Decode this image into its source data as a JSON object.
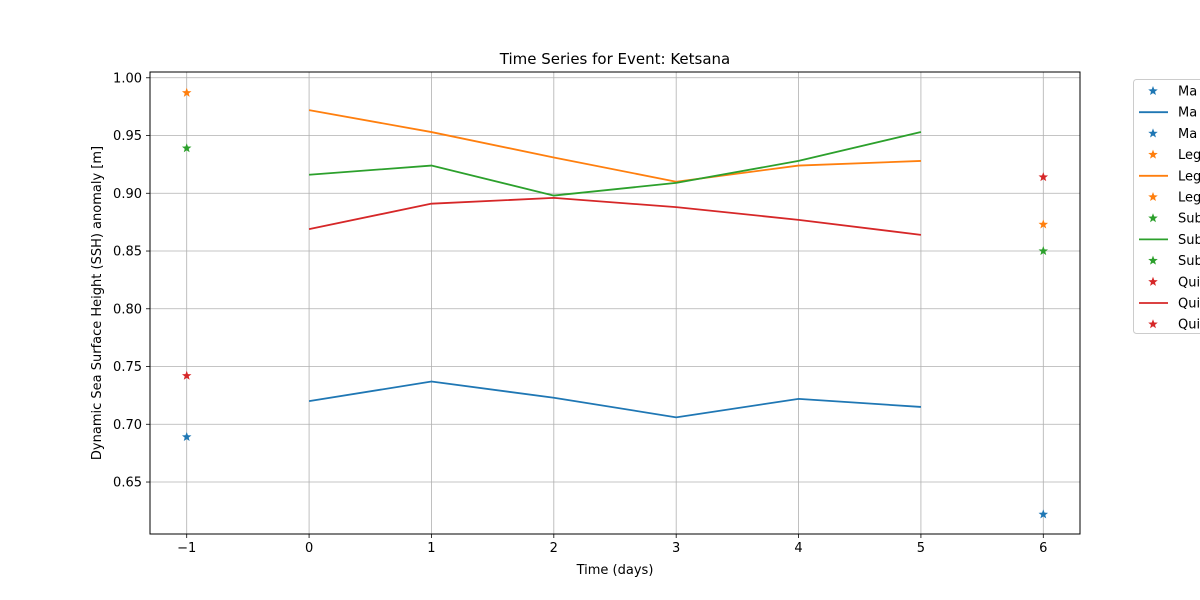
{
  "chart_data": {
    "type": "line",
    "title": "Time Series for Event: Ketsana",
    "xlabel": "Time (days)",
    "ylabel": "Dynamic Sea Surface Height (SSH) anomaly [m]",
    "xlim": [
      -1.3,
      6.3
    ],
    "ylim": [
      0.605,
      1.005
    ],
    "xticks": [
      -1,
      0,
      1,
      2,
      3,
      4,
      5,
      6
    ],
    "xtick_labels": [
      "−1",
      "0",
      "1",
      "2",
      "3",
      "4",
      "5",
      "6"
    ],
    "yticks": [
      0.65,
      0.7,
      0.75,
      0.8,
      0.85,
      0.9,
      0.95,
      1.0
    ],
    "ytick_labels": [
      "0.65",
      "0.70",
      "0.75",
      "0.80",
      "0.85",
      "0.90",
      "0.95",
      "1.00"
    ],
    "grid": true,
    "legend_position": "outside-right",
    "series": [
      {
        "color": "#1f77b4",
        "line_label": "Ma",
        "line_x": [
          0,
          1,
          2,
          3,
          4,
          5
        ],
        "line_y": [
          0.72,
          0.737,
          0.723,
          0.706,
          0.722,
          0.715
        ],
        "pre_label": "Ma",
        "pre_point": [
          -1,
          0.689
        ],
        "post_label": "Ma",
        "post_point": [
          6,
          0.622
        ]
      },
      {
        "color": "#ff7f0e",
        "line_label": "Leg",
        "line_x": [
          0,
          1,
          2,
          3,
          4,
          5
        ],
        "line_y": [
          0.972,
          0.953,
          0.931,
          0.91,
          0.924,
          0.928
        ],
        "pre_label": "Leg",
        "pre_point": [
          -1,
          0.987
        ],
        "post_label": "Leg",
        "post_point": [
          6,
          0.873
        ]
      },
      {
        "color": "#2ca02c",
        "line_label": "Sub",
        "line_x": [
          0,
          1,
          2,
          3,
          4,
          5
        ],
        "line_y": [
          0.916,
          0.924,
          0.898,
          0.909,
          0.928,
          0.953
        ],
        "pre_label": "Sub",
        "pre_point": [
          -1,
          0.939
        ],
        "post_label": "Sub",
        "post_point": [
          6,
          0.85
        ]
      },
      {
        "color": "#d62728",
        "line_label": "Qui",
        "line_x": [
          0,
          1,
          2,
          3,
          4,
          5
        ],
        "line_y": [
          0.869,
          0.891,
          0.896,
          0.888,
          0.877,
          0.864
        ],
        "pre_label": "Qui",
        "pre_point": [
          -1,
          0.742
        ],
        "post_label": "Qui",
        "post_point": [
          6,
          0.914
        ]
      }
    ]
  }
}
